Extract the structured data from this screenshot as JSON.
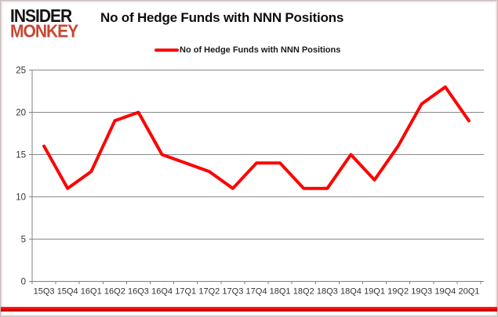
{
  "logo": {
    "line1": "INSIDER",
    "line2": "MONKEY"
  },
  "title": "No of Hedge Funds with NNN Positions",
  "legend": {
    "label": "No of Hedge Funds with NNN Positions",
    "swatch_color": "#ff0000"
  },
  "colors": {
    "line": "#ff0000",
    "grid": "#898989",
    "axis": "#808080",
    "tick_label": "#333333",
    "ribbon": "#fb0000",
    "logo_accent": "#c74634"
  },
  "chart_data": {
    "type": "line",
    "title": "No of Hedge Funds with NNN Positions",
    "categories": [
      "15Q3",
      "15Q4",
      "16Q1",
      "16Q2",
      "16Q3",
      "16Q4",
      "17Q1",
      "17Q2",
      "17Q3",
      "17Q4",
      "18Q1",
      "18Q2",
      "18Q3",
      "18Q4",
      "19Q1",
      "19Q2",
      "19Q3",
      "19Q4",
      "20Q1"
    ],
    "series": [
      {
        "name": "No of Hedge Funds with NNN Positions",
        "color": "#ff0000",
        "values": [
          16,
          11,
          13,
          19,
          20,
          15,
          14,
          13,
          11,
          14,
          14,
          11,
          11,
          15,
          12,
          16,
          21,
          23,
          19
        ]
      }
    ],
    "xlabel": "",
    "ylabel": "",
    "ylim": [
      0,
      25
    ],
    "yticks": [
      0,
      5,
      10,
      15,
      20,
      25
    ],
    "grid": true,
    "legend_position": "top"
  }
}
